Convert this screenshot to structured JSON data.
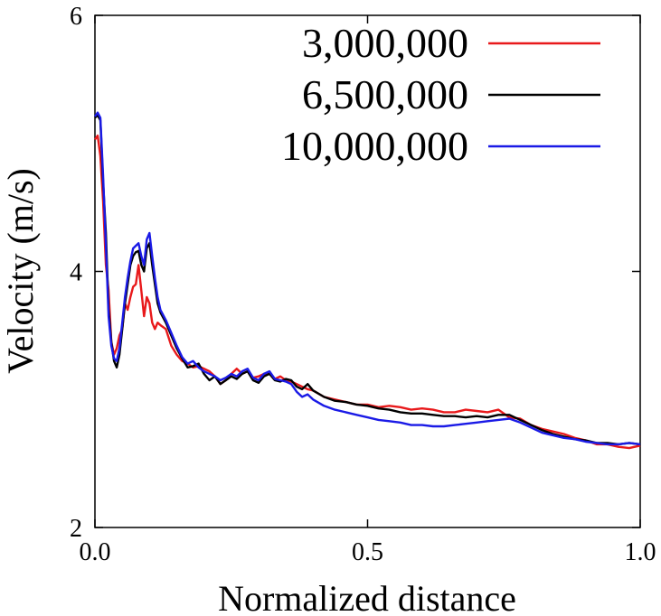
{
  "chart_data": {
    "type": "line",
    "title": "",
    "xlabel": "Normalized distance",
    "ylabel": "Velocity (m/s)",
    "xlim": [
      0.0,
      1.0
    ],
    "ylim": [
      2,
      6
    ],
    "xticks": [
      "0.0",
      "0.5",
      "1.0"
    ],
    "yticks": [
      "2",
      "4",
      "6"
    ],
    "grid": false,
    "legend_position": "top-right",
    "series": [
      {
        "name": "3,000,000",
        "color": "#e8191b",
        "x": [
          0.0,
          0.005,
          0.01,
          0.015,
          0.02,
          0.025,
          0.03,
          0.035,
          0.04,
          0.045,
          0.05,
          0.055,
          0.06,
          0.065,
          0.07,
          0.075,
          0.08,
          0.085,
          0.09,
          0.095,
          0.1,
          0.105,
          0.11,
          0.115,
          0.12,
          0.13,
          0.14,
          0.15,
          0.16,
          0.17,
          0.18,
          0.19,
          0.2,
          0.21,
          0.22,
          0.23,
          0.24,
          0.25,
          0.26,
          0.27,
          0.28,
          0.29,
          0.3,
          0.31,
          0.32,
          0.33,
          0.34,
          0.35,
          0.36,
          0.37,
          0.38,
          0.39,
          0.4,
          0.42,
          0.44,
          0.46,
          0.48,
          0.5,
          0.52,
          0.54,
          0.56,
          0.58,
          0.6,
          0.62,
          0.64,
          0.66,
          0.68,
          0.7,
          0.72,
          0.74,
          0.76,
          0.78,
          0.8,
          0.82,
          0.84,
          0.86,
          0.88,
          0.9,
          0.92,
          0.94,
          0.96,
          0.98,
          1.0
        ],
        "values": [
          5.03,
          5.06,
          4.9,
          4.55,
          4.05,
          3.85,
          3.45,
          3.35,
          3.4,
          3.5,
          3.55,
          3.75,
          3.7,
          3.8,
          3.88,
          3.9,
          4.05,
          3.85,
          3.65,
          3.8,
          3.75,
          3.6,
          3.55,
          3.6,
          3.58,
          3.55,
          3.42,
          3.35,
          3.3,
          3.28,
          3.25,
          3.26,
          3.24,
          3.22,
          3.18,
          3.12,
          3.15,
          3.2,
          3.24,
          3.2,
          3.22,
          3.17,
          3.18,
          3.2,
          3.2,
          3.16,
          3.18,
          3.15,
          3.14,
          3.12,
          3.1,
          3.08,
          3.07,
          3.02,
          3.0,
          2.98,
          2.96,
          2.96,
          2.94,
          2.95,
          2.94,
          2.92,
          2.93,
          2.92,
          2.9,
          2.9,
          2.92,
          2.91,
          2.9,
          2.92,
          2.86,
          2.85,
          2.8,
          2.77,
          2.75,
          2.73,
          2.7,
          2.68,
          2.65,
          2.65,
          2.63,
          2.62,
          2.64
        ]
      },
      {
        "name": "6,500,000",
        "color": "#000000",
        "x": [
          0.0,
          0.005,
          0.01,
          0.015,
          0.02,
          0.025,
          0.03,
          0.035,
          0.04,
          0.045,
          0.05,
          0.055,
          0.06,
          0.065,
          0.07,
          0.075,
          0.08,
          0.085,
          0.09,
          0.095,
          0.1,
          0.105,
          0.11,
          0.115,
          0.12,
          0.13,
          0.14,
          0.15,
          0.16,
          0.17,
          0.18,
          0.19,
          0.2,
          0.21,
          0.22,
          0.23,
          0.24,
          0.25,
          0.26,
          0.27,
          0.28,
          0.29,
          0.3,
          0.31,
          0.32,
          0.33,
          0.34,
          0.35,
          0.36,
          0.37,
          0.38,
          0.39,
          0.4,
          0.42,
          0.44,
          0.46,
          0.48,
          0.5,
          0.52,
          0.54,
          0.56,
          0.58,
          0.6,
          0.62,
          0.64,
          0.66,
          0.68,
          0.7,
          0.72,
          0.74,
          0.76,
          0.78,
          0.8,
          0.82,
          0.84,
          0.86,
          0.88,
          0.9,
          0.92,
          0.94,
          0.96,
          0.98,
          1.0
        ],
        "values": [
          5.2,
          5.22,
          5.18,
          4.7,
          4.3,
          3.7,
          3.45,
          3.3,
          3.25,
          3.35,
          3.55,
          3.75,
          3.9,
          4.05,
          4.12,
          4.15,
          4.16,
          4.05,
          4.0,
          4.18,
          4.22,
          4.05,
          3.9,
          3.75,
          3.68,
          3.6,
          3.5,
          3.4,
          3.32,
          3.25,
          3.26,
          3.28,
          3.2,
          3.15,
          3.18,
          3.12,
          3.15,
          3.18,
          3.16,
          3.2,
          3.22,
          3.15,
          3.13,
          3.18,
          3.2,
          3.15,
          3.14,
          3.16,
          3.15,
          3.1,
          3.08,
          3.12,
          3.07,
          3.02,
          2.99,
          2.98,
          2.96,
          2.95,
          2.93,
          2.92,
          2.9,
          2.89,
          2.89,
          2.88,
          2.87,
          2.87,
          2.86,
          2.87,
          2.86,
          2.88,
          2.88,
          2.84,
          2.8,
          2.76,
          2.73,
          2.71,
          2.69,
          2.68,
          2.66,
          2.66,
          2.65,
          2.66,
          2.65
        ]
      },
      {
        "name": "10,000,000",
        "color": "#1a1ae6",
        "x": [
          0.0,
          0.005,
          0.01,
          0.015,
          0.02,
          0.025,
          0.03,
          0.035,
          0.04,
          0.045,
          0.05,
          0.055,
          0.06,
          0.065,
          0.07,
          0.075,
          0.08,
          0.085,
          0.09,
          0.095,
          0.1,
          0.105,
          0.11,
          0.115,
          0.12,
          0.13,
          0.14,
          0.15,
          0.16,
          0.17,
          0.18,
          0.19,
          0.2,
          0.21,
          0.22,
          0.23,
          0.24,
          0.25,
          0.26,
          0.27,
          0.28,
          0.29,
          0.3,
          0.31,
          0.32,
          0.33,
          0.34,
          0.35,
          0.36,
          0.37,
          0.38,
          0.39,
          0.4,
          0.42,
          0.44,
          0.46,
          0.48,
          0.5,
          0.52,
          0.54,
          0.56,
          0.58,
          0.6,
          0.62,
          0.64,
          0.66,
          0.68,
          0.7,
          0.72,
          0.74,
          0.76,
          0.78,
          0.8,
          0.82,
          0.84,
          0.86,
          0.88,
          0.9,
          0.92,
          0.94,
          0.96,
          0.98,
          1.0
        ],
        "values": [
          5.21,
          5.24,
          5.2,
          4.75,
          4.2,
          3.65,
          3.42,
          3.32,
          3.3,
          3.4,
          3.6,
          3.8,
          3.95,
          4.08,
          4.18,
          4.2,
          4.22,
          4.12,
          4.05,
          4.25,
          4.3,
          4.12,
          3.95,
          3.8,
          3.7,
          3.62,
          3.52,
          3.42,
          3.33,
          3.28,
          3.3,
          3.25,
          3.22,
          3.2,
          3.18,
          3.15,
          3.17,
          3.2,
          3.18,
          3.22,
          3.24,
          3.17,
          3.15,
          3.2,
          3.22,
          3.16,
          3.15,
          3.14,
          3.12,
          3.06,
          3.02,
          3.04,
          3.0,
          2.95,
          2.92,
          2.9,
          2.88,
          2.86,
          2.84,
          2.83,
          2.82,
          2.8,
          2.8,
          2.79,
          2.79,
          2.8,
          2.81,
          2.82,
          2.83,
          2.84,
          2.85,
          2.82,
          2.78,
          2.74,
          2.72,
          2.7,
          2.69,
          2.67,
          2.66,
          2.65,
          2.65,
          2.66,
          2.65
        ]
      }
    ]
  }
}
